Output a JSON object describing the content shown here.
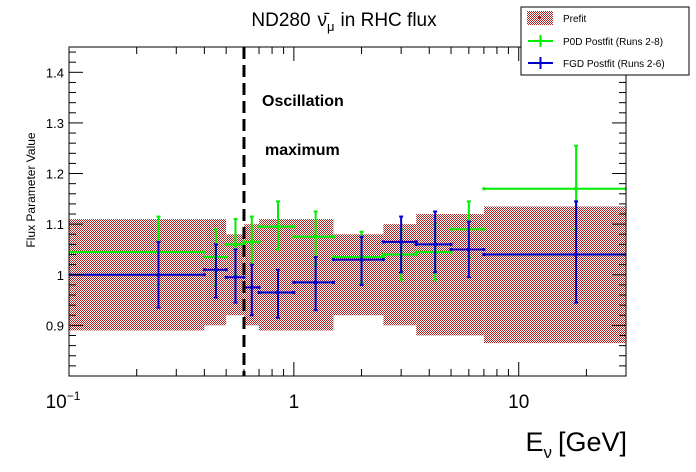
{
  "chart_data": {
    "type": "scatter",
    "title_prefix": "ND280",
    "title_particle": "ν̄",
    "title_sub": "μ",
    "title_suffix": "in RHC flux",
    "xlabel_main": "E",
    "xlabel_sub": "ν",
    "xlabel_unit": "[GeV]",
    "ylabel": "Flux Parameter Value",
    "xscale": "log",
    "xlim": [
      0.1,
      30
    ],
    "ylim": [
      0.8,
      1.45
    ],
    "yticks": [
      "0.9",
      "1",
      "1.1",
      "1.2",
      "1.3",
      "1.4"
    ],
    "ytick_values": [
      0.9,
      1.0,
      1.1,
      1.2,
      1.3,
      1.4
    ],
    "xtick_major_values": [
      0.1,
      1,
      10
    ],
    "xtick_base": "10",
    "xtick_exp_first": "−1",
    "xtick_plain": [
      "1",
      "10"
    ],
    "grid": false,
    "legend_position": "top-right",
    "legend": [
      "Prefit",
      "P0D Postfit (Runs 2-8)",
      "FGD Postfit (Runs 2-6)"
    ],
    "annotations": [
      "Oscillation",
      "maximum"
    ],
    "osc_max_x": 0.6,
    "colors": {
      "prefit": "#b22222",
      "p0d": "#00ee00",
      "fgd": "#0000cc"
    },
    "prefit_bands": [
      {
        "x0": 0.1,
        "x1": 0.4,
        "lo": 0.89,
        "hi": 1.11
      },
      {
        "x0": 0.4,
        "x1": 0.5,
        "lo": 0.9,
        "hi": 1.11
      },
      {
        "x0": 0.5,
        "x1": 0.6,
        "lo": 0.92,
        "hi": 1.08
      },
      {
        "x0": 0.6,
        "x1": 0.7,
        "lo": 0.9,
        "hi": 1.1
      },
      {
        "x0": 0.7,
        "x1": 1.0,
        "lo": 0.89,
        "hi": 1.11
      },
      {
        "x0": 1.0,
        "x1": 1.5,
        "lo": 0.89,
        "hi": 1.11
      },
      {
        "x0": 1.5,
        "x1": 2.5,
        "lo": 0.92,
        "hi": 1.08
      },
      {
        "x0": 2.5,
        "x1": 3.5,
        "lo": 0.9,
        "hi": 1.1
      },
      {
        "x0": 3.5,
        "x1": 5.0,
        "lo": 0.88,
        "hi": 1.12
      },
      {
        "x0": 5.0,
        "x1": 7.0,
        "lo": 0.88,
        "hi": 1.12
      },
      {
        "x0": 7.0,
        "x1": 30.0,
        "lo": 0.865,
        "hi": 1.135
      }
    ],
    "series": [
      {
        "name": "P0D Postfit (Runs 2-8)",
        "points": [
          {
            "x": 0.25,
            "x0": 0.1,
            "x1": 0.4,
            "y": 1.045,
            "lo": 0.98,
            "hi": 1.115
          },
          {
            "x": 0.45,
            "x0": 0.4,
            "x1": 0.5,
            "y": 1.035,
            "lo": 0.98,
            "hi": 1.09
          },
          {
            "x": 0.55,
            "x0": 0.5,
            "x1": 0.6,
            "y": 1.06,
            "lo": 1.0,
            "hi": 1.11
          },
          {
            "x": 0.65,
            "x0": 0.6,
            "x1": 0.7,
            "y": 1.065,
            "lo": 1.02,
            "hi": 1.115
          },
          {
            "x": 0.85,
            "x0": 0.7,
            "x1": 1.0,
            "y": 1.095,
            "lo": 1.05,
            "hi": 1.145
          },
          {
            "x": 1.25,
            "x0": 1.0,
            "x1": 1.5,
            "y": 1.075,
            "lo": 1.02,
            "hi": 1.125
          },
          {
            "x": 2.0,
            "x0": 1.5,
            "x1": 2.5,
            "y": 1.035,
            "lo": 0.985,
            "hi": 1.085
          },
          {
            "x": 3.0,
            "x0": 2.5,
            "x1": 3.5,
            "y": 1.04,
            "lo": 0.99,
            "hi": 1.09
          },
          {
            "x": 4.25,
            "x0": 3.5,
            "x1": 5.0,
            "y": 1.045,
            "lo": 0.99,
            "hi": 1.1
          },
          {
            "x": 6.0,
            "x0": 5.0,
            "x1": 7.0,
            "y": 1.09,
            "lo": 1.035,
            "hi": 1.145
          },
          {
            "x": 18.0,
            "x0": 7.0,
            "x1": 30.0,
            "y": 1.17,
            "lo": 1.09,
            "hi": 1.255
          }
        ]
      },
      {
        "name": "FGD Postfit (Runs 2-6)",
        "points": [
          {
            "x": 0.25,
            "x0": 0.1,
            "x1": 0.4,
            "y": 1.0,
            "lo": 0.935,
            "hi": 1.065
          },
          {
            "x": 0.45,
            "x0": 0.4,
            "x1": 0.5,
            "y": 1.01,
            "lo": 0.955,
            "hi": 1.06
          },
          {
            "x": 0.55,
            "x0": 0.5,
            "x1": 0.6,
            "y": 0.995,
            "lo": 0.945,
            "hi": 1.05
          },
          {
            "x": 0.65,
            "x0": 0.6,
            "x1": 0.7,
            "y": 0.975,
            "lo": 0.92,
            "hi": 1.02
          },
          {
            "x": 0.85,
            "x0": 0.7,
            "x1": 1.0,
            "y": 0.965,
            "lo": 0.915,
            "hi": 1.01
          },
          {
            "x": 1.25,
            "x0": 1.0,
            "x1": 1.5,
            "y": 0.985,
            "lo": 0.93,
            "hi": 1.035
          },
          {
            "x": 2.0,
            "x0": 1.5,
            "x1": 2.5,
            "y": 1.03,
            "lo": 0.98,
            "hi": 1.075
          },
          {
            "x": 3.0,
            "x0": 2.5,
            "x1": 3.5,
            "y": 1.065,
            "lo": 1.005,
            "hi": 1.115
          },
          {
            "x": 4.25,
            "x0": 3.5,
            "x1": 5.0,
            "y": 1.06,
            "lo": 1.005,
            "hi": 1.125
          },
          {
            "x": 6.0,
            "x0": 5.0,
            "x1": 7.0,
            "y": 1.05,
            "lo": 0.995,
            "hi": 1.105
          },
          {
            "x": 18.0,
            "x0": 7.0,
            "x1": 30.0,
            "y": 1.04,
            "lo": 0.945,
            "hi": 1.145
          }
        ]
      }
    ]
  }
}
